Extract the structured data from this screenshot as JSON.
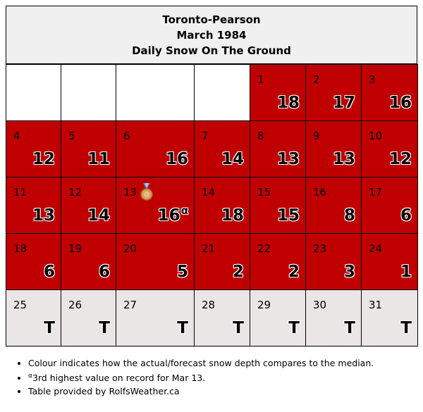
{
  "header": {
    "station": "Toronto-Pearson",
    "month": "March 1984",
    "title": "Daily Snow On The Ground"
  },
  "colors": {
    "above_median": "#c00000",
    "trace": "#ebe6e6",
    "empty": "#ffffff",
    "header_bg": "#f0f0f0"
  },
  "weeks": [
    [
      {
        "day": "",
        "value": "",
        "status": "empty"
      },
      {
        "day": "",
        "value": "",
        "status": "empty"
      },
      {
        "day": "",
        "value": "",
        "status": "empty"
      },
      {
        "day": "",
        "value": "",
        "status": "empty"
      },
      {
        "day": "1",
        "value": "18",
        "status": "red"
      },
      {
        "day": "2",
        "value": "17",
        "status": "red"
      },
      {
        "day": "3",
        "value": "16",
        "status": "red"
      }
    ],
    [
      {
        "day": "4",
        "value": "12",
        "status": "red"
      },
      {
        "day": "5",
        "value": "11",
        "status": "red"
      },
      {
        "day": "6",
        "value": "16",
        "status": "red"
      },
      {
        "day": "7",
        "value": "14",
        "status": "red"
      },
      {
        "day": "8",
        "value": "13",
        "status": "red"
      },
      {
        "day": "9",
        "value": "13",
        "status": "red"
      },
      {
        "day": "10",
        "value": "12",
        "status": "red"
      }
    ],
    [
      {
        "day": "11",
        "value": "13",
        "status": "red"
      },
      {
        "day": "12",
        "value": "14",
        "status": "red"
      },
      {
        "day": "13",
        "value": "16",
        "status": "red",
        "marker": "α",
        "medal": "bronze-medal-icon"
      },
      {
        "day": "14",
        "value": "18",
        "status": "red"
      },
      {
        "day": "15",
        "value": "15",
        "status": "red"
      },
      {
        "day": "16",
        "value": "8",
        "status": "red"
      },
      {
        "day": "17",
        "value": "6",
        "status": "red"
      }
    ],
    [
      {
        "day": "18",
        "value": "6",
        "status": "red"
      },
      {
        "day": "19",
        "value": "6",
        "status": "red"
      },
      {
        "day": "20",
        "value": "5",
        "status": "red"
      },
      {
        "day": "21",
        "value": "2",
        "status": "red"
      },
      {
        "day": "22",
        "value": "2",
        "status": "red"
      },
      {
        "day": "23",
        "value": "3",
        "status": "red"
      },
      {
        "day": "24",
        "value": "1",
        "status": "red"
      }
    ],
    [
      {
        "day": "25",
        "value": "T",
        "status": "gray"
      },
      {
        "day": "26",
        "value": "T",
        "status": "gray"
      },
      {
        "day": "27",
        "value": "T",
        "status": "gray"
      },
      {
        "day": "28",
        "value": "T",
        "status": "gray"
      },
      {
        "day": "29",
        "value": "T",
        "status": "gray"
      },
      {
        "day": "30",
        "value": "T",
        "status": "gray"
      },
      {
        "day": "31",
        "value": "T",
        "status": "gray"
      }
    ]
  ],
  "notes": {
    "colour": "Colour indicates how the actual/forecast snow depth compares to the median.",
    "footnote_marker": "α",
    "footnote_text": "3rd highest value on record for Mar 13.",
    "credit": "Table provided by RolfsWeather.ca"
  }
}
